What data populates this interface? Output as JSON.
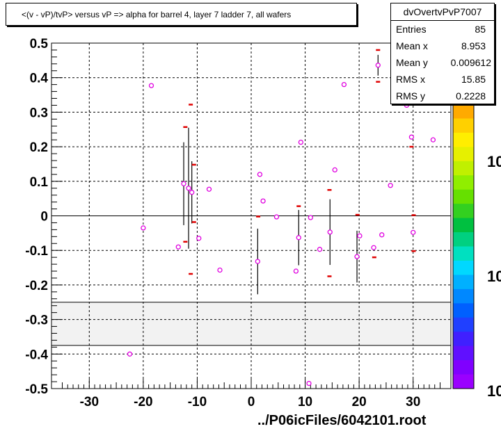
{
  "title": "<(v - vP)/tvP> versus   vP => alpha for barrel 4, layer 7 ladder 7, all wafers",
  "footer": "../P06icFiles/6042101.root",
  "stats": {
    "name": "dvOvertvPvP7007",
    "rows": [
      {
        "label": "Entries",
        "value": "85"
      },
      {
        "label": "Mean x",
        "value": "8.953"
      },
      {
        "label": "Mean y",
        "value": "0.009612"
      },
      {
        "label": "RMS x",
        "value": "15.85"
      },
      {
        "label": "RMS y",
        "value": "0.2228"
      }
    ]
  },
  "colorbar": {
    "labels": [
      "10",
      "10",
      "10"
    ]
  },
  "colors": {
    "marker": "#e000e0",
    "band": "#f2f2f2",
    "red": "#e00000"
  },
  "chart_data": {
    "type": "scatter",
    "xlim": [
      -37,
      37
    ],
    "ylim": [
      -0.5,
      0.5
    ],
    "xticks": [
      -30,
      -20,
      -10,
      0,
      10,
      20,
      30
    ],
    "xtick_labels": [
      "-30",
      "-20",
      "-10",
      "0",
      "10",
      "20",
      "30"
    ],
    "yticks": [
      -0.5,
      -0.4,
      -0.3,
      -0.2,
      -0.1,
      0,
      0.1,
      0.2,
      0.3,
      0.4,
      0.5
    ],
    "ytick_labels": [
      "-0.5",
      "-0.4",
      "-0.3",
      "-0.2",
      "-0.1",
      "0",
      "0.1",
      "0.2",
      "0.3",
      "0.4",
      "0.5"
    ],
    "grid": true,
    "band": [
      -0.375,
      -0.25
    ],
    "points": [
      {
        "x": -22.5,
        "y": -0.4
      },
      {
        "x": -20,
        "y": -0.035
      },
      {
        "x": -18.5,
        "y": 0.377
      },
      {
        "x": -13.5,
        "y": -0.09
      },
      {
        "x": -12.5,
        "y": 0.093,
        "err": 0.12
      },
      {
        "x": -11.6,
        "y": 0.08,
        "err": 0.175
      },
      {
        "x": -11,
        "y": 0.068,
        "err": 0.09
      },
      {
        "x": -9.7,
        "y": -0.065
      },
      {
        "x": -7.8,
        "y": 0.077
      },
      {
        "x": -5.8,
        "y": -0.157
      },
      {
        "x": 1.2,
        "y": -0.132,
        "err": 0.095
      },
      {
        "x": 1.6,
        "y": 0.12
      },
      {
        "x": 2.2,
        "y": 0.043
      },
      {
        "x": 4.7,
        "y": -0.003
      },
      {
        "x": 8.3,
        "y": -0.16
      },
      {
        "x": 8.8,
        "y": -0.063,
        "err": 0.08
      },
      {
        "x": 9.2,
        "y": 0.213
      },
      {
        "x": 11,
        "y": -0.005
      },
      {
        "x": 12.7,
        "y": -0.097
      },
      {
        "x": 14.6,
        "y": -0.047,
        "err": 0.095
      },
      {
        "x": 15.5,
        "y": 0.133
      },
      {
        "x": 17.2,
        "y": 0.38
      },
      {
        "x": 19.6,
        "y": -0.118,
        "err": 0.075
      },
      {
        "x": 20.1,
        "y": -0.058
      },
      {
        "x": 22.7,
        "y": -0.092
      },
      {
        "x": 23.5,
        "y": 0.436,
        "err": 0.03
      },
      {
        "x": 24.2,
        "y": -0.055
      },
      {
        "x": 25.8,
        "y": 0.088
      },
      {
        "x": 28.8,
        "y": 0.32
      },
      {
        "x": 29.7,
        "y": 0.228
      },
      {
        "x": 30,
        "y": -0.048
      },
      {
        "x": 33.7,
        "y": 0.22
      },
      {
        "x": 10.7,
        "y": -0.485
      }
    ],
    "red_marks": [
      {
        "x": -12.2,
        "y": 0.257
      },
      {
        "x": -12.2,
        "y": -0.075
      },
      {
        "x": -11.2,
        "y": 0.322
      },
      {
        "x": -11.2,
        "y": -0.168
      },
      {
        "x": -10.6,
        "y": 0.148
      },
      {
        "x": -10.6,
        "y": -0.018
      },
      {
        "x": 1.3,
        "y": -0.002
      },
      {
        "x": 8.8,
        "y": 0.028
      },
      {
        "x": 14.5,
        "y": 0.075
      },
      {
        "x": 14.5,
        "y": -0.175
      },
      {
        "x": 19.7,
        "y": 0.003
      },
      {
        "x": 22.8,
        "y": -0.12
      },
      {
        "x": 23.5,
        "y": 0.48
      },
      {
        "x": 23.5,
        "y": 0.388
      },
      {
        "x": 29.7,
        "y": 0.2
      },
      {
        "x": 30.1,
        "y": 0.002
      },
      {
        "x": 30.1,
        "y": -0.102
      }
    ]
  }
}
